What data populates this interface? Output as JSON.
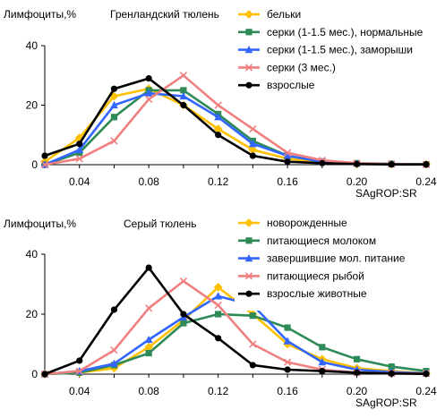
{
  "chart_data": [
    {
      "type": "line",
      "title": "Гренландский тюлень",
      "ylabel": "Лимфоциты,%",
      "xlabel": "SAgROP:SR",
      "xlim": [
        0.02,
        0.24
      ],
      "ylim": [
        0,
        40
      ],
      "x_ticks": [
        "0.04",
        "0.08",
        "0.12",
        "0.16",
        "0.20",
        "0.24"
      ],
      "x_tick_values": [
        0.04,
        0.08,
        0.12,
        0.16,
        0.2,
        0.24
      ],
      "y_ticks": [
        "0",
        "20",
        "40"
      ],
      "y_tick_values": [
        0,
        20,
        40
      ],
      "legend_position": "top-right",
      "series": [
        {
          "name": "бельки",
          "color": "#FFC000",
          "marker": "diamond",
          "x": [
            0.02,
            0.04,
            0.06,
            0.08,
            0.1,
            0.12,
            0.14,
            0.16,
            0.18,
            0.2,
            0.22,
            0.24
          ],
          "values": [
            1,
            9,
            23,
            25.5,
            20,
            12,
            5,
            2,
            0.8,
            0.3,
            0.2,
            0.1
          ]
        },
        {
          "name": "серки (1-1.5 мес.), нормальные",
          "color": "#2E8B57",
          "marker": "square",
          "x": [
            0.02,
            0.04,
            0.06,
            0.08,
            0.1,
            0.12,
            0.14,
            0.16,
            0.18,
            0.2,
            0.22,
            0.24
          ],
          "values": [
            0,
            4,
            16,
            25,
            25,
            17,
            8,
            3,
            1,
            0.5,
            0.3,
            0.1
          ]
        },
        {
          "name": "серки (1-1.5 мес.), заморыши",
          "color": "#3366FF",
          "marker": "triangle",
          "x": [
            0.02,
            0.04,
            0.06,
            0.08,
            0.1,
            0.12,
            0.14,
            0.16,
            0.18,
            0.2,
            0.22,
            0.24
          ],
          "values": [
            0,
            5,
            20,
            24,
            23,
            16,
            7,
            3,
            1,
            0.4,
            0.2,
            0.1
          ]
        },
        {
          "name": "серки (3 мес.)",
          "color": "#F08080",
          "marker": "x",
          "x": [
            0.02,
            0.04,
            0.06,
            0.08,
            0.1,
            0.12,
            0.14,
            0.16,
            0.18,
            0.2,
            0.22,
            0.24
          ],
          "values": [
            0,
            2,
            8,
            22,
            30,
            20,
            12,
            4,
            1.5,
            0.5,
            0.2,
            0.1
          ]
        },
        {
          "name": "взрослые",
          "color": "#000000",
          "marker": "circle",
          "x": [
            0.02,
            0.04,
            0.06,
            0.08,
            0.1,
            0.12,
            0.14,
            0.16,
            0.18,
            0.2,
            0.22,
            0.24
          ],
          "values": [
            3,
            7,
            25.5,
            29,
            20,
            10,
            3,
            1,
            0.5,
            0.2,
            0.1,
            0.1
          ]
        }
      ]
    },
    {
      "type": "line",
      "title": "Серый тюлень",
      "ylabel": "Лимфоциты,%",
      "xlabel": "SAgROP:SR",
      "xlim": [
        0.02,
        0.24
      ],
      "ylim": [
        0,
        40
      ],
      "x_ticks": [
        "0.04",
        "0.08",
        "0.12",
        "0.16",
        "0.20",
        "0.24"
      ],
      "x_tick_values": [
        0.04,
        0.08,
        0.12,
        0.16,
        0.2,
        0.24
      ],
      "y_ticks": [
        "0",
        "20",
        "40"
      ],
      "y_tick_values": [
        0,
        20,
        40
      ],
      "legend_position": "top-right",
      "series": [
        {
          "name": "новорожденные",
          "color": "#FFC000",
          "marker": "diamond",
          "x": [
            0.02,
            0.04,
            0.06,
            0.08,
            0.1,
            0.12,
            0.14,
            0.16,
            0.18,
            0.2,
            0.22,
            0.24
          ],
          "values": [
            0,
            0.5,
            2,
            9,
            18,
            29,
            20,
            10,
            5,
            2,
            1,
            0.3
          ]
        },
        {
          "name": "питающиеся молоком",
          "color": "#2E8B57",
          "marker": "square",
          "x": [
            0.02,
            0.04,
            0.06,
            0.08,
            0.1,
            0.12,
            0.14,
            0.16,
            0.18,
            0.2,
            0.22,
            0.24
          ],
          "values": [
            0,
            0.5,
            3,
            7,
            17,
            20,
            19.5,
            15.5,
            9,
            5,
            2.5,
            1
          ]
        },
        {
          "name": "завершившие мол. питание",
          "color": "#3366FF",
          "marker": "triangle",
          "x": [
            0.02,
            0.04,
            0.06,
            0.08,
            0.1,
            0.12,
            0.14,
            0.16,
            0.18,
            0.2,
            0.22,
            0.24
          ],
          "values": [
            0,
            1,
            3.5,
            11.5,
            19,
            26,
            23,
            11,
            4,
            1.5,
            0.7,
            0.3
          ]
        },
        {
          "name": "питающиеся рыбой",
          "color": "#F08080",
          "marker": "x",
          "x": [
            0.02,
            0.04,
            0.06,
            0.08,
            0.1,
            0.12,
            0.14,
            0.16,
            0.18,
            0.2,
            0.22,
            0.24
          ],
          "values": [
            0,
            1,
            8,
            22,
            31,
            23,
            10,
            4,
            1.5,
            0.5,
            0.3,
            0.2
          ]
        },
        {
          "name": "взрослые животные",
          "color": "#000000",
          "marker": "circle",
          "x": [
            0.02,
            0.04,
            0.06,
            0.08,
            0.1,
            0.12,
            0.14,
            0.16,
            0.18,
            0.2,
            0.22,
            0.24
          ],
          "values": [
            0,
            4.5,
            21.5,
            35.5,
            20,
            12,
            3,
            1.5,
            1,
            0.5,
            0.2,
            0.1
          ]
        }
      ]
    }
  ]
}
